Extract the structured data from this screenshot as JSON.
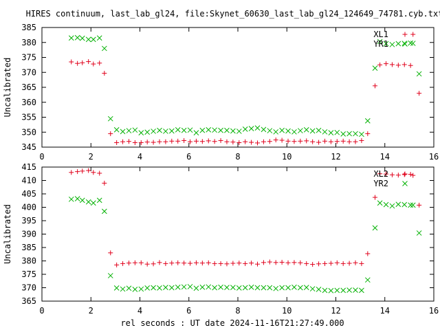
{
  "title": "HIRES continuum, last_lab_gl24, file:Skynet_60630_last_lab_gl24_124649_74781.cyb.txt",
  "xlabel": "rel seconds : UT date 2024-11-16T21:27:49.000",
  "colors": {
    "red": "#e0001b",
    "green": "#00b000"
  },
  "chart_data": [
    {
      "type": "scatter",
      "ylabel": "Uncalibrated",
      "xlim": [
        0,
        16
      ],
      "ylim": [
        345,
        385
      ],
      "xticks": [
        0,
        2,
        4,
        6,
        8,
        10,
        12,
        14,
        16
      ],
      "yticks": [
        345,
        350,
        355,
        360,
        365,
        370,
        375,
        380,
        385
      ],
      "legend_position": "top-right",
      "series": [
        {
          "name": "XL1",
          "marker": "plus",
          "color": "#e0001b",
          "x": [
            1.2,
            1.45,
            1.65,
            1.9,
            2.1,
            2.35,
            2.55,
            2.8,
            3.05,
            3.3,
            3.55,
            3.8,
            4.05,
            4.3,
            4.55,
            4.8,
            5.05,
            5.3,
            5.55,
            5.8,
            6.05,
            6.3,
            6.55,
            6.8,
            7.05,
            7.3,
            7.55,
            7.8,
            8.05,
            8.3,
            8.55,
            8.8,
            9.05,
            9.3,
            9.55,
            9.8,
            10.05,
            10.3,
            10.55,
            10.8,
            11.05,
            11.3,
            11.55,
            11.8,
            12.05,
            12.3,
            12.55,
            12.8,
            13.05,
            13.3,
            13.6,
            13.8,
            14.05,
            14.3,
            14.55,
            14.8,
            15.05,
            15.15,
            15.4
          ],
          "y": [
            373.5,
            373.0,
            373.2,
            373.6,
            372.8,
            373.1,
            369.7,
            349.5,
            346.5,
            346.8,
            346.9,
            346.5,
            346.5,
            346.7,
            346.6,
            346.8,
            346.8,
            347.0,
            347.0,
            347.2,
            346.8,
            347.0,
            346.9,
            347.1,
            346.9,
            347.2,
            346.8,
            346.7,
            346.5,
            346.8,
            346.6,
            346.4,
            346.8,
            346.9,
            347.4,
            347.3,
            347.0,
            346.9,
            347.0,
            347.1,
            346.8,
            346.6,
            347.0,
            346.8,
            346.9,
            347.0,
            346.8,
            346.8,
            347.2,
            349.5,
            365.5,
            372.5,
            372.9,
            372.6,
            372.4,
            372.6,
            372.3,
            382.7,
            363.0
          ]
        },
        {
          "name": "YR1",
          "marker": "cross",
          "color": "#00b000",
          "x": [
            1.2,
            1.45,
            1.65,
            1.9,
            2.1,
            2.35,
            2.55,
            2.8,
            3.05,
            3.3,
            3.55,
            3.8,
            4.05,
            4.3,
            4.55,
            4.8,
            5.05,
            5.3,
            5.55,
            5.8,
            6.05,
            6.3,
            6.55,
            6.8,
            7.05,
            7.3,
            7.55,
            7.8,
            8.05,
            8.3,
            8.55,
            8.8,
            9.05,
            9.3,
            9.55,
            9.8,
            10.05,
            10.3,
            10.55,
            10.8,
            11.05,
            11.3,
            11.55,
            11.8,
            12.05,
            12.3,
            12.55,
            12.8,
            13.05,
            13.3,
            13.6,
            13.8,
            14.05,
            14.3,
            14.55,
            14.8,
            15.05,
            15.15,
            15.4
          ],
          "y": [
            381.5,
            381.6,
            381.4,
            381.0,
            381.0,
            381.5,
            378.0,
            354.5,
            350.8,
            350.2,
            350.5,
            350.7,
            349.8,
            350.0,
            350.3,
            350.6,
            350.3,
            350.4,
            350.8,
            350.6,
            350.7,
            349.8,
            350.6,
            350.8,
            350.7,
            350.6,
            350.6,
            350.4,
            350.3,
            351.0,
            351.2,
            351.4,
            350.9,
            350.5,
            350.1,
            350.6,
            350.4,
            350.1,
            350.5,
            350.8,
            350.4,
            350.6,
            350.1,
            349.8,
            349.9,
            349.4,
            349.5,
            349.5,
            349.3,
            353.8,
            371.4,
            380.3,
            379.6,
            379.3,
            379.6,
            379.7,
            379.8,
            379.7,
            369.5
          ]
        }
      ]
    },
    {
      "type": "scatter",
      "ylabel": "Uncalibrated",
      "xlim": [
        0,
        16
      ],
      "ylim": [
        365,
        415
      ],
      "xticks": [
        0,
        2,
        4,
        6,
        8,
        10,
        12,
        14,
        16
      ],
      "yticks": [
        365,
        370,
        375,
        380,
        385,
        390,
        395,
        400,
        405,
        410,
        415
      ],
      "legend_position": "top-right",
      "series": [
        {
          "name": "XL2",
          "marker": "plus",
          "color": "#e0001b",
          "x": [
            1.2,
            1.45,
            1.65,
            1.9,
            2.1,
            2.35,
            2.55,
            2.8,
            3.05,
            3.3,
            3.55,
            3.8,
            4.05,
            4.3,
            4.55,
            4.8,
            5.05,
            5.3,
            5.55,
            5.8,
            6.05,
            6.3,
            6.55,
            6.8,
            7.05,
            7.3,
            7.55,
            7.8,
            8.05,
            8.3,
            8.55,
            8.8,
            9.05,
            9.3,
            9.55,
            9.8,
            10.05,
            10.3,
            10.55,
            10.8,
            11.05,
            11.3,
            11.55,
            11.8,
            12.05,
            12.3,
            12.55,
            12.8,
            13.05,
            13.3,
            13.6,
            13.8,
            14.05,
            14.3,
            14.55,
            14.8,
            15.05,
            15.15,
            15.4
          ],
          "y": [
            413.0,
            413.3,
            413.5,
            413.7,
            413.0,
            412.7,
            409.0,
            383.0,
            378.5,
            379.0,
            379.2,
            379.3,
            379.3,
            378.8,
            378.9,
            379.4,
            379.0,
            379.2,
            379.3,
            379.2,
            379.1,
            379.3,
            379.2,
            379.3,
            379.0,
            379.0,
            378.9,
            379.1,
            379.2,
            379.0,
            379.2,
            378.8,
            379.4,
            379.6,
            379.4,
            379.5,
            379.3,
            379.4,
            379.3,
            379.0,
            378.7,
            378.9,
            379.0,
            379.1,
            379.3,
            379.0,
            379.1,
            379.3,
            379.0,
            382.7,
            403.7,
            412.5,
            412.4,
            412.1,
            412.0,
            412.2,
            412.3,
            411.9,
            400.8
          ]
        },
        {
          "name": "YR2",
          "marker": "cross",
          "color": "#00b000",
          "x": [
            1.2,
            1.45,
            1.65,
            1.9,
            2.1,
            2.35,
            2.55,
            2.8,
            3.05,
            3.3,
            3.55,
            3.8,
            4.05,
            4.3,
            4.55,
            4.8,
            5.05,
            5.3,
            5.55,
            5.8,
            6.05,
            6.3,
            6.55,
            6.8,
            7.05,
            7.3,
            7.55,
            7.8,
            8.05,
            8.3,
            8.55,
            8.8,
            9.05,
            9.3,
            9.55,
            9.8,
            10.05,
            10.3,
            10.55,
            10.8,
            11.05,
            11.3,
            11.55,
            11.8,
            12.05,
            12.3,
            12.55,
            12.8,
            13.05,
            13.3,
            13.6,
            13.8,
            14.05,
            14.3,
            14.55,
            14.8,
            15.05,
            15.15,
            15.4
          ],
          "y": [
            403.0,
            403.2,
            402.6,
            402.0,
            401.6,
            402.6,
            398.5,
            374.5,
            369.9,
            369.5,
            369.8,
            369.4,
            369.5,
            369.9,
            370.0,
            369.9,
            370.1,
            370.0,
            370.2,
            370.3,
            370.4,
            369.8,
            370.2,
            370.3,
            370.0,
            370.2,
            370.1,
            370.1,
            369.9,
            370.0,
            370.2,
            370.0,
            370.0,
            370.0,
            369.7,
            370.0,
            370.0,
            370.2,
            370.0,
            370.1,
            369.6,
            369.4,
            369.0,
            368.9,
            369.0,
            369.0,
            369.1,
            369.1,
            369.0,
            372.9,
            392.3,
            401.6,
            401.0,
            400.5,
            401.1,
            401.0,
            400.8,
            400.8,
            390.4
          ]
        }
      ]
    }
  ]
}
